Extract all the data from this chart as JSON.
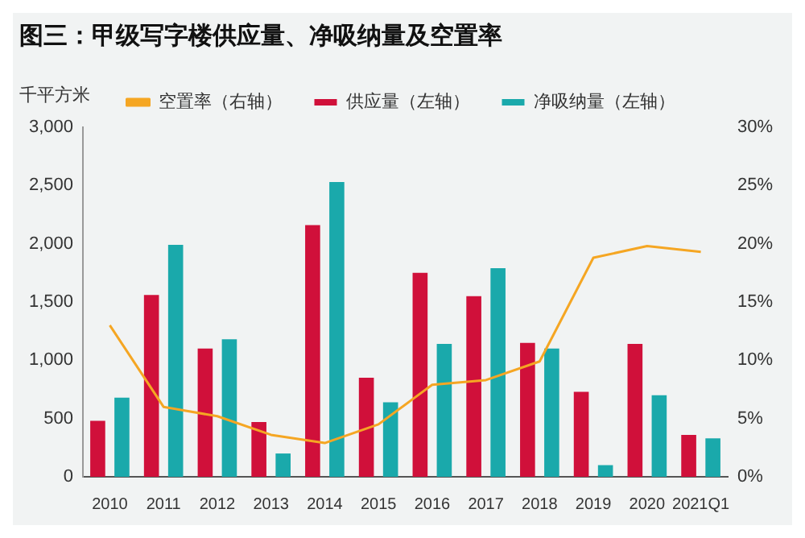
{
  "chart_data": {
    "type": "bar",
    "title": "图三：甲级写字楼供应量、净吸纳量及空置率",
    "ylabel": "千平方米",
    "categories": [
      "2010",
      "2011",
      "2012",
      "2013",
      "2014",
      "2015",
      "2016",
      "2017",
      "2018",
      "2019",
      "2020",
      "2021Q1"
    ],
    "series": [
      {
        "name": "供应量（左轴）",
        "color": "#d0103a",
        "values": [
          480,
          1560,
          1100,
          470,
          2160,
          850,
          1750,
          1550,
          1150,
          730,
          1140,
          360
        ]
      },
      {
        "name": "净吸纳量（左轴）",
        "color": "#1aa9ab",
        "values": [
          680,
          1990,
          1180,
          200,
          2530,
          640,
          1140,
          1790,
          1100,
          100,
          700,
          330
        ]
      },
      {
        "name": "空置率（右轴）",
        "type": "line",
        "axis": "y2",
        "color": "#f5a623",
        "marker": "none",
        "values": [
          13.0,
          6.0,
          5.2,
          3.6,
          2.9,
          4.5,
          7.9,
          8.3,
          9.9,
          18.8,
          19.8,
          19.3
        ]
      }
    ],
    "ylim": [
      0,
      3000
    ],
    "yticks": [
      0,
      500,
      {
        "value": 1000,
        "label": "1,000"
      },
      {
        "value": 1500,
        "label": "1,500"
      },
      {
        "value": 2000,
        "label": "2,000"
      },
      {
        "value": 2500,
        "label": "2,500"
      },
      {
        "value": 3000,
        "label": "3,000"
      }
    ],
    "y2lim": [
      0,
      30
    ],
    "y2ticks": [
      {
        "value": 0,
        "label": "0%"
      },
      {
        "value": 5,
        "label": "5%"
      },
      {
        "value": 10,
        "label": "10%"
      },
      {
        "value": 15,
        "label": "15%"
      },
      {
        "value": 20,
        "label": "20%"
      },
      {
        "value": 25,
        "label": "25%"
      },
      {
        "value": 30,
        "label": "30%"
      }
    ],
    "legend": "top"
  }
}
